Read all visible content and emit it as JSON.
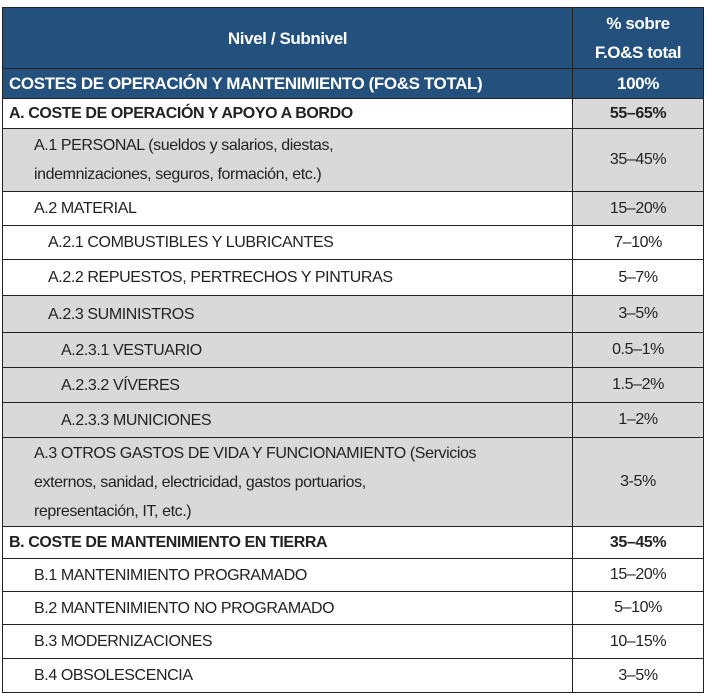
{
  "header": {
    "col1": "Nivel / Subnivel",
    "col2_line1": "% sobre",
    "col2_line2": "F.O&S total"
  },
  "rows": [
    {
      "lines": [
        "COSTES DE OPERACIÓN Y MANTENIMIENTO (FO&S TOTAL)"
      ],
      "pct": "100%",
      "style": "tot",
      "indent": 0,
      "h": 26
    },
    {
      "lines": [
        "A. COSTE DE OPERACIÓN Y APOYO A BORDO"
      ],
      "pct": "55–65%",
      "style": "b",
      "indent": 0,
      "h": 30,
      "pctGray": true
    },
    {
      "lines": [
        "A.1 PERSONAL (sueldos y salarios, diestas,",
        "indemnizaciones, seguros, formación, etc.)"
      ],
      "pct": "35–45%",
      "style": "gray",
      "indent": 1,
      "h": 63
    },
    {
      "lines": [
        "A.2 MATERIAL"
      ],
      "pct": "15–20%",
      "style": "",
      "indent": 1,
      "h": 34,
      "pctGray": true
    },
    {
      "lines": [
        "A.2.1 COMBUSTIBLES Y LUBRICANTES"
      ],
      "pct": "7–10%",
      "style": "",
      "indent": 2,
      "h": 34
    },
    {
      "lines": [
        "A.2.2 REPUESTOS, PERTRECHOS Y PINTURAS"
      ],
      "pct": "5–7%",
      "style": "",
      "indent": 2,
      "h": 36
    },
    {
      "lines": [
        "A.2.3 SUMINISTROS"
      ],
      "pct": "3–5%",
      "style": "gray",
      "indent": 2,
      "h": 37
    },
    {
      "lines": [
        "A.2.3.1 VESTUARIO"
      ],
      "pct": "0.5–1%",
      "style": "gray",
      "indent": 3,
      "h": 35
    },
    {
      "lines": [
        "A.2.3.2 VÍVERES"
      ],
      "pct": "1.5–2%",
      "style": "gray",
      "indent": 3,
      "h": 35
    },
    {
      "lines": [
        "A.2.3.3 MUNICIONES"
      ],
      "pct": "1–2%",
      "style": "gray",
      "indent": 3,
      "h": 35
    },
    {
      "lines": [
        "A.3 OTROS GASTOS DE VIDA Y FUNCIONAMIENTO (Servicios",
        "externos, sanidad, electricidad, gastos portuarios,",
        "representación, IT, etc.)"
      ],
      "pct": "3-5%",
      "style": "gray",
      "indent": 1,
      "h": 89
    },
    {
      "lines": [
        "B. COSTE DE MANTENIMIENTO EN TIERRA"
      ],
      "pct": "35–45%",
      "style": "b",
      "indent": 0,
      "h": 32
    },
    {
      "lines": [
        "B.1 MANTENIMIENTO PROGRAMADO"
      ],
      "pct": "15–20%",
      "style": "",
      "indent": 1,
      "h": 33
    },
    {
      "lines": [
        "B.2 MANTENIMIENTO NO PROGRAMADO"
      ],
      "pct": "5–10%",
      "style": "",
      "indent": 1,
      "h": 33
    },
    {
      "lines": [
        "B.3 MODERNIZACIONES"
      ],
      "pct": "10–15%",
      "style": "",
      "indent": 1,
      "h": 34
    },
    {
      "lines": [
        "B.4 OBSOLESCENCIA"
      ],
      "pct": "3–5%",
      "style": "",
      "indent": 1,
      "h": 34
    }
  ],
  "colors": {
    "header_bg": "#23507c",
    "gray": "#d9d9d9"
  }
}
